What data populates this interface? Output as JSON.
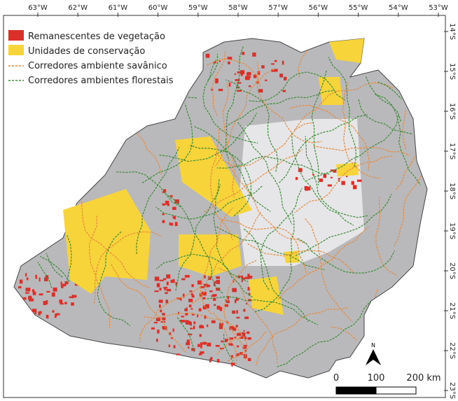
{
  "legend": [
    {
      "label": "Remanescentes de vegetação",
      "type": "fill",
      "color": "#d9302a"
    },
    {
      "label": "Unidades de conservação",
      "type": "fill",
      "color": "#f7d43a"
    },
    {
      "label": "Corredores ambiente savânico",
      "type": "line",
      "color": "#e8893a"
    },
    {
      "label": "Corredores ambientes florestais",
      "type": "line",
      "color": "#3a8a35"
    }
  ],
  "longitude_ticks": [
    "63°W",
    "62°W",
    "61°W",
    "60°W",
    "59°W",
    "58°W",
    "57°W",
    "56°W",
    "55°W",
    "54°W",
    "53°W"
  ],
  "latitude_ticks": [
    "14°S",
    "15°S",
    "16°S",
    "17°S",
    "18°S",
    "19°S",
    "20°S",
    "21°S",
    "22°S",
    "23°S"
  ],
  "scale_bar": {
    "labels": [
      "0",
      "100",
      "200 km"
    ]
  },
  "north_arrow": {
    "label": "N"
  },
  "colors": {
    "region": "#b9b9bb",
    "inner_region": "#e6e6e8",
    "outline": "#444"
  }
}
